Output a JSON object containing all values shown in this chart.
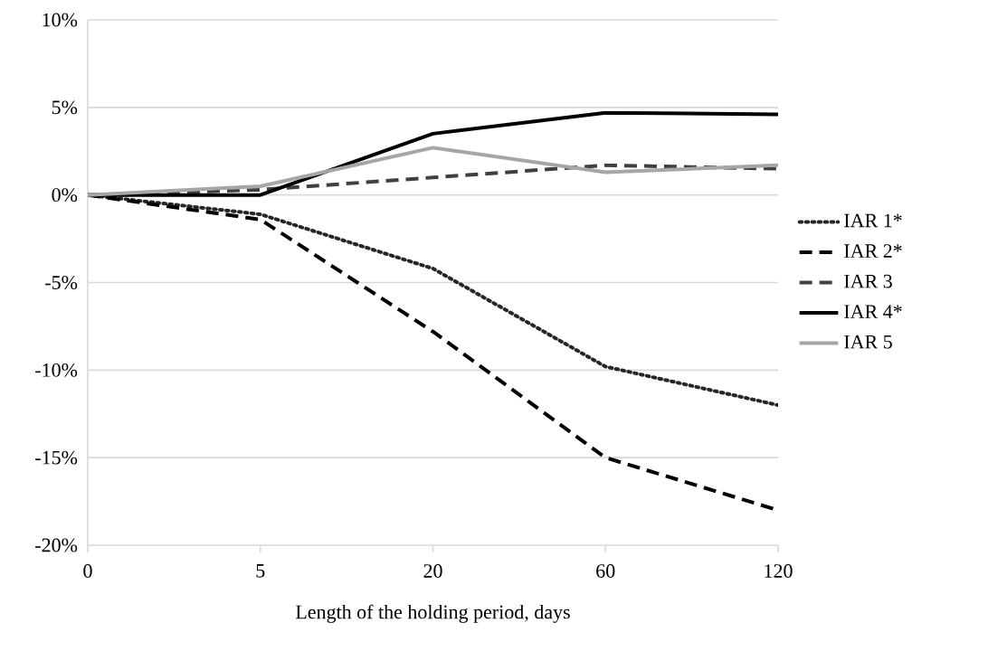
{
  "chart_data": {
    "type": "line",
    "xlabel": "Length of the holding period, days",
    "categories": [
      "0",
      "5",
      "20",
      "60",
      "120"
    ],
    "series": [
      {
        "name": "IAR 1*",
        "color": "#262626",
        "line_style": "dotted",
        "values": [
          0,
          -1.1,
          -4.2,
          -9.8,
          -12.0
        ]
      },
      {
        "name": "IAR 2*",
        "color": "#000000",
        "line_style": "dashed",
        "values": [
          0,
          -1.4,
          -7.8,
          -15.0,
          -18.0
        ]
      },
      {
        "name": "IAR 3",
        "color": "#404040",
        "line_style": "dashed",
        "values": [
          0,
          0.3,
          1.0,
          1.7,
          1.5
        ]
      },
      {
        "name": "IAR 4*",
        "color": "#000000",
        "line_style": "solid",
        "values": [
          0,
          0.0,
          3.5,
          4.7,
          4.6
        ]
      },
      {
        "name": "IAR 5",
        "color": "#a6a6a6",
        "line_style": "solid",
        "values": [
          0,
          0.5,
          2.7,
          1.3,
          1.7
        ]
      }
    ],
    "ylim": [
      -20,
      10
    ],
    "yticks": [
      {
        "value": -20,
        "label": "-20%"
      },
      {
        "value": -15,
        "label": "-15%"
      },
      {
        "value": -10,
        "label": "-10%"
      },
      {
        "value": -5,
        "label": "-5%"
      },
      {
        "value": 0,
        "label": "0%"
      },
      {
        "value": 5,
        "label": "5%"
      },
      {
        "value": 10,
        "label": "10%"
      }
    ],
    "grid": "y",
    "legend": "right",
    "marker": "none"
  }
}
